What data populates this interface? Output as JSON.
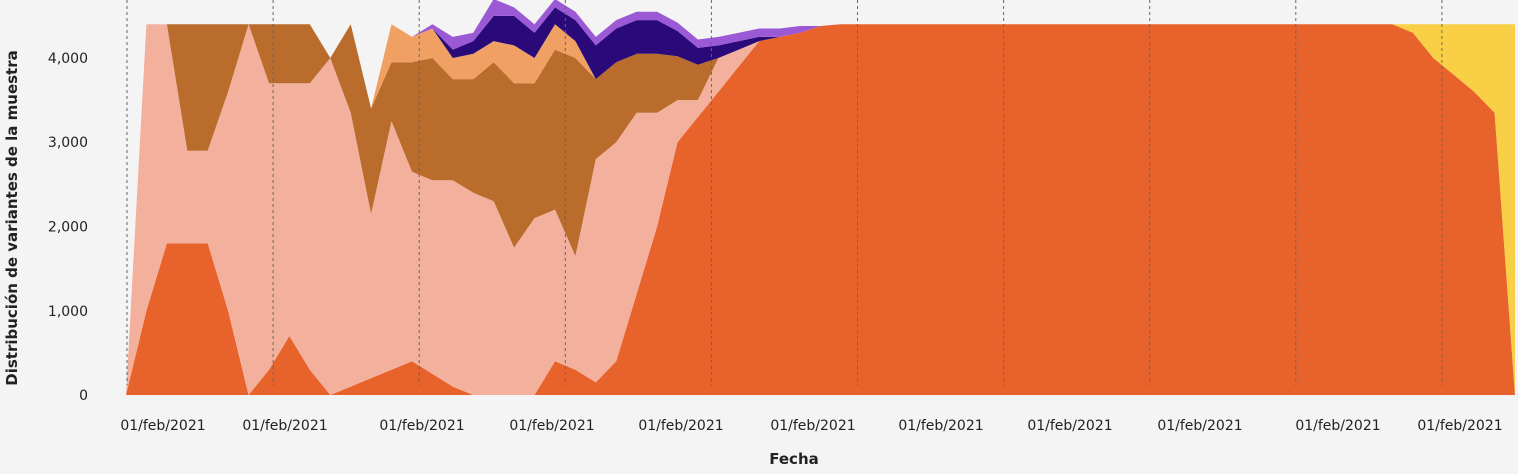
{
  "chart_data": {
    "type": "area",
    "stacked": true,
    "xlabel": "Fecha",
    "ylabel": "Distribución de variantes de la muestra",
    "ylim": [
      0,
      4400
    ],
    "yticks": [
      0,
      1000,
      2000,
      3000,
      4000
    ],
    "x_tick_labels": [
      "01/feb/2021",
      "01/feb/2021",
      "01/feb/2021",
      "01/feb/2021",
      "01/feb/2021",
      "01/feb/2021",
      "01/feb/2021",
      "01/feb/2021",
      "01/feb/2021",
      "01/feb/2021",
      "01/feb/2021"
    ],
    "grid": "vertical dotted lines",
    "legend": "none",
    "x": [
      0,
      1,
      2,
      3,
      4,
      5,
      6,
      7,
      8,
      9,
      10,
      11,
      12,
      13,
      14,
      15,
      16,
      17,
      18,
      19,
      20,
      21,
      22,
      23,
      24,
      25,
      26,
      27,
      28,
      29,
      30,
      31,
      32,
      33,
      34,
      35,
      36,
      37,
      38,
      39,
      40,
      41,
      42,
      43,
      44,
      45,
      46,
      47,
      48,
      49,
      50,
      51,
      52,
      53,
      54,
      55,
      56,
      57,
      58,
      59,
      60,
      61,
      62,
      63,
      64,
      65,
      66,
      67,
      68
    ],
    "series": [
      {
        "color": "#e8622c",
        "values": [
          0,
          1000,
          1800,
          1800,
          1800,
          1000,
          0,
          300,
          700,
          300,
          0,
          100,
          200,
          300,
          400,
          250,
          100,
          0,
          0,
          0,
          0,
          400,
          300,
          150,
          400,
          1200,
          2000,
          3000,
          3300,
          3600,
          3900,
          4200,
          4250,
          4300,
          4380,
          4400,
          4400,
          4400,
          4400,
          4400,
          4400,
          4400,
          4400,
          4400,
          4400,
          4400,
          4400,
          4400,
          4400,
          4400,
          4400,
          4400,
          4400,
          4400,
          4400,
          4400,
          4400,
          4400,
          4400,
          4400,
          4400,
          4400,
          4400,
          4300,
          4000,
          3800,
          3600,
          3350,
          0
        ]
      },
      {
        "color": "#f3b19d",
        "values": [
          0,
          3400,
          2600,
          1100,
          1100,
          2600,
          4400,
          3400,
          3000,
          3400,
          4000,
          3250,
          1950,
          2950,
          2250,
          2300,
          2450,
          2400,
          2300,
          1750,
          2100,
          1800,
          1350,
          2650,
          2600,
          2150,
          1350,
          500,
          200,
          400,
          200,
          0,
          0,
          0,
          0,
          0,
          0,
          0,
          0,
          0,
          0,
          0,
          0,
          0,
          0,
          0,
          0,
          0,
          0,
          0,
          0,
          0,
          0,
          0,
          0,
          0,
          0,
          0,
          0,
          0,
          0,
          0,
          0,
          0,
          0,
          0,
          0,
          0,
          0
        ]
      },
      {
        "color": "#ba6c2c",
        "values": [
          0,
          0,
          0,
          1500,
          1500,
          800,
          0,
          700,
          700,
          700,
          0,
          1050,
          1250,
          700,
          1300,
          1450,
          1200,
          1350,
          1650,
          1950,
          1600,
          1900,
          2350,
          950,
          950,
          700,
          700,
          520,
          420,
          0,
          0,
          0,
          0,
          0,
          0,
          0,
          0,
          0,
          0,
          0,
          0,
          0,
          0,
          0,
          0,
          0,
          0,
          0,
          0,
          0,
          0,
          0,
          0,
          0,
          0,
          0,
          0,
          0,
          0,
          0,
          0,
          0,
          0,
          0,
          0,
          0,
          0,
          0,
          0
        ]
      },
      {
        "color": "#f0a063",
        "values": [
          0,
          0,
          0,
          0,
          0,
          0,
          0,
          0,
          0,
          0,
          0,
          0,
          0,
          450,
          300,
          350,
          250,
          300,
          250,
          450,
          300,
          300,
          200,
          0,
          0,
          0,
          0,
          0,
          0,
          0,
          0,
          0,
          0,
          0,
          0,
          0,
          0,
          0,
          0,
          0,
          0,
          0,
          0,
          0,
          0,
          0,
          0,
          0,
          0,
          0,
          0,
          0,
          0,
          0,
          0,
          0,
          0,
          0,
          0,
          0,
          0,
          0,
          0,
          0,
          0,
          0,
          0,
          0,
          0
        ]
      },
      {
        "color": "#2a0a78",
        "values": [
          0,
          0,
          0,
          0,
          0,
          0,
          0,
          0,
          0,
          0,
          0,
          0,
          0,
          0,
          0,
          0,
          100,
          150,
          300,
          350,
          300,
          200,
          250,
          400,
          400,
          400,
          400,
          300,
          200,
          150,
          100,
          50,
          0,
          0,
          0,
          0,
          0,
          0,
          0,
          0,
          0,
          0,
          0,
          0,
          0,
          0,
          0,
          0,
          0,
          0,
          0,
          0,
          0,
          0,
          0,
          0,
          0,
          0,
          0,
          0,
          0,
          0,
          0,
          0,
          0,
          0,
          0,
          0,
          0
        ]
      },
      {
        "color": "#9b59d6",
        "values": [
          0,
          0,
          0,
          0,
          0,
          0,
          0,
          0,
          0,
          0,
          0,
          0,
          0,
          0,
          0,
          50,
          150,
          100,
          200,
          100,
          100,
          100,
          100,
          100,
          100,
          100,
          100,
          100,
          100,
          100,
          100,
          100,
          100,
          80,
          0,
          0,
          0,
          0,
          0,
          0,
          0,
          0,
          0,
          0,
          0,
          0,
          0,
          0,
          0,
          0,
          0,
          0,
          0,
          0,
          0,
          0,
          0,
          0,
          0,
          0,
          0,
          0,
          0,
          0,
          0,
          0,
          0,
          0,
          0
        ]
      },
      {
        "color": "#f9cf45",
        "values": [
          0,
          0,
          0,
          0,
          0,
          0,
          0,
          0,
          0,
          0,
          0,
          0,
          0,
          0,
          0,
          0,
          0,
          0,
          0,
          0,
          0,
          0,
          0,
          0,
          0,
          0,
          0,
          0,
          0,
          0,
          0,
          0,
          0,
          0,
          0,
          0,
          0,
          0,
          0,
          0,
          0,
          0,
          0,
          0,
          0,
          0,
          0,
          0,
          0,
          0,
          0,
          0,
          0,
          0,
          0,
          0,
          0,
          0,
          0,
          0,
          0,
          0,
          0,
          100,
          400,
          600,
          800,
          1050,
          4400
        ]
      }
    ]
  }
}
